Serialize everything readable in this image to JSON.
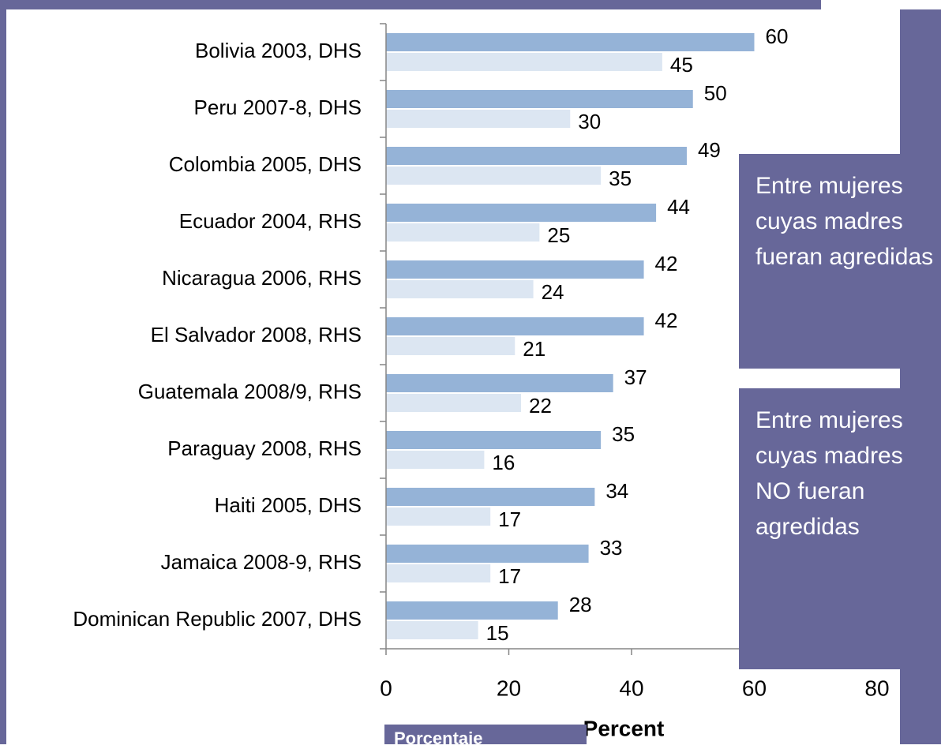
{
  "chart_data": {
    "type": "bar",
    "orientation": "horizontal",
    "categories": [
      "Bolivia 2003, DHS",
      "Peru 2007-8, DHS",
      "Colombia 2005, DHS",
      "Ecuador 2004, RHS",
      "Nicaragua 2006, RHS",
      "El Salvador 2008, RHS",
      "Guatemala 2008/9, RHS",
      "Paraguay 2008, RHS",
      "Haiti 2005, DHS",
      "Jamaica 2008-9, RHS",
      "Dominican Republic 2007, DHS"
    ],
    "series": [
      {
        "name": "Entre mujeres cuyas madres fueran agredidas",
        "color": "#95b3d7",
        "values": [
          60,
          50,
          49,
          44,
          42,
          42,
          37,
          35,
          34,
          33,
          28
        ]
      },
      {
        "name": "Entre mujeres cuyas madres NO fueran agredidas",
        "color": "#dce6f2",
        "values": [
          45,
          30,
          35,
          25,
          24,
          21,
          22,
          16,
          17,
          17,
          15
        ]
      }
    ],
    "xlim": [
      0,
      80
    ],
    "xticks": [
      0,
      20,
      40,
      60,
      80
    ],
    "x_label": "Percent",
    "annotation": "Porcentaje",
    "grid": false
  }
}
